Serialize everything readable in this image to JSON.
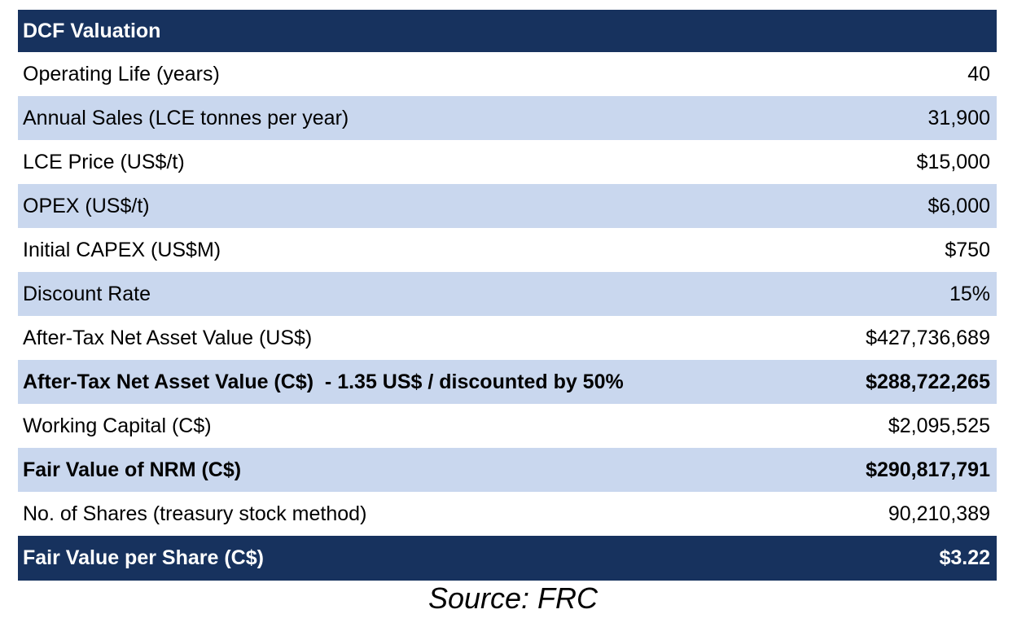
{
  "table": {
    "title": "DCF Valuation",
    "rows": [
      {
        "label": "Operating Life (years)",
        "value": "40"
      },
      {
        "label": "Annual Sales (LCE tonnes per year)",
        "value": "31,900"
      },
      {
        "label": "LCE Price (US$/t)",
        "value": "$15,000"
      },
      {
        "label": "OPEX (US$/t)",
        "value": "$6,000"
      },
      {
        "label": "Initial CAPEX (US$M)",
        "value": "$750"
      },
      {
        "label": "Discount Rate",
        "value": "15%"
      },
      {
        "label": "After-Tax Net Asset Value (US$)",
        "value": "$427,736,689"
      },
      {
        "label": "After-Tax Net Asset Value (C$)  - 1.35 US$ / discounted by 50%",
        "value": "$288,722,265"
      },
      {
        "label": "Working Capital (C$)",
        "value": "$2,095,525"
      },
      {
        "label": "Fair Value of NRM (C$)",
        "value": "$290,817,791"
      },
      {
        "label": "No. of Shares (treasury stock method)",
        "value": "90,210,389"
      }
    ],
    "footer": {
      "label": "Fair Value per Share (C$)",
      "value": "$3.22"
    }
  },
  "source": "Source: FRC",
  "colors": {
    "header_bg": "#17325e",
    "shaded_row": "#c9d7ee",
    "white_row": "#ffffff"
  }
}
